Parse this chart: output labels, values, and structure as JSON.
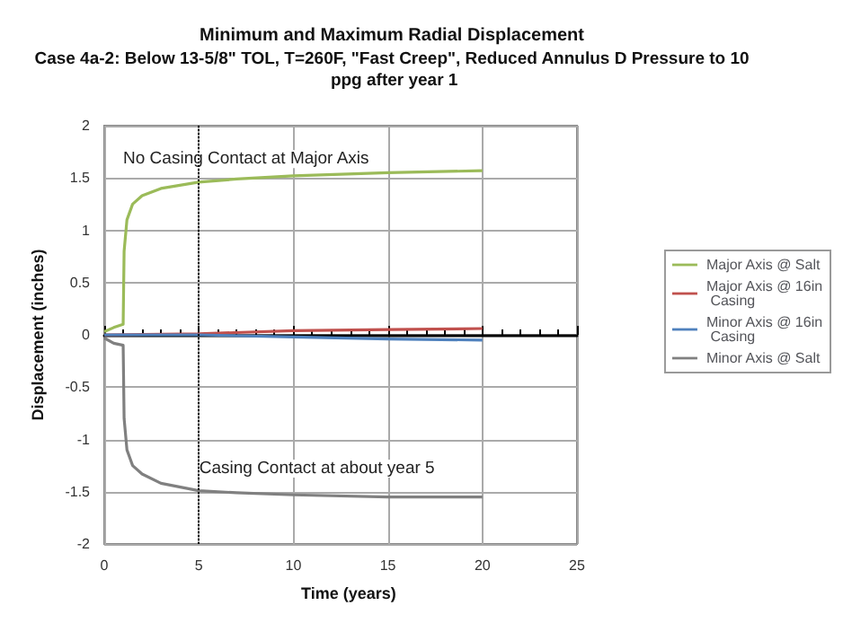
{
  "chart_data": {
    "type": "line",
    "title": "Minimum and Maximum Radial Displacement",
    "subtitle": "Case 4a-2: Below 13-5/8\" TOL, T=260F, \"Fast Creep\", Reduced Annulus D Pressure to 10 ppg after year 1",
    "xlabel": "Time (years)",
    "ylabel": "Displacement (inches)",
    "xlim": [
      0,
      25
    ],
    "xticks": [
      0,
      5,
      10,
      15,
      20,
      25
    ],
    "ylim": [
      -2,
      2
    ],
    "yticks": [
      -2,
      -1.5,
      -1,
      -0.5,
      0,
      0.5,
      1,
      1.5,
      2
    ],
    "grid": true,
    "legend": "right",
    "marker": "none",
    "line_style": "solid",
    "series": [
      {
        "name": "Major Axis @ Salt",
        "color": "#9bbb59",
        "x": [
          0,
          0.5,
          1,
          1.05,
          1.2,
          1.5,
          2,
          3,
          5,
          7,
          10,
          15,
          20
        ],
        "values": [
          0.03,
          0.07,
          0.1,
          0.8,
          1.1,
          1.25,
          1.33,
          1.4,
          1.46,
          1.49,
          1.52,
          1.55,
          1.57
        ]
      },
      {
        "name": "Major Axis @ 16in Casing",
        "color": "#c0504d",
        "x": [
          0,
          5,
          10,
          15,
          20
        ],
        "values": [
          0,
          0.01,
          0.04,
          0.05,
          0.06
        ]
      },
      {
        "name": "Minor Axis @ 16in Casing",
        "color": "#4f81bd",
        "x": [
          0,
          5,
          10,
          15,
          20
        ],
        "values": [
          0,
          0,
          -0.02,
          -0.04,
          -0.05
        ]
      },
      {
        "name": "Minor Axis @ Salt",
        "color": "#808080",
        "x": [
          0,
          0.5,
          1,
          1.05,
          1.2,
          1.5,
          2,
          3,
          5,
          7,
          10,
          15,
          20
        ],
        "values": [
          -0.03,
          -0.08,
          -0.1,
          -0.8,
          -1.1,
          -1.25,
          -1.33,
          -1.42,
          -1.49,
          -1.51,
          -1.53,
          -1.55,
          -1.55
        ]
      }
    ],
    "ref_lines": [
      {
        "axis": "x",
        "value": 5,
        "label": null,
        "color": "#000000",
        "line_style": "dotted"
      }
    ],
    "annotations": [
      "No Casing Contact at Major Axis",
      "Casing Contact at about year 5"
    ]
  }
}
